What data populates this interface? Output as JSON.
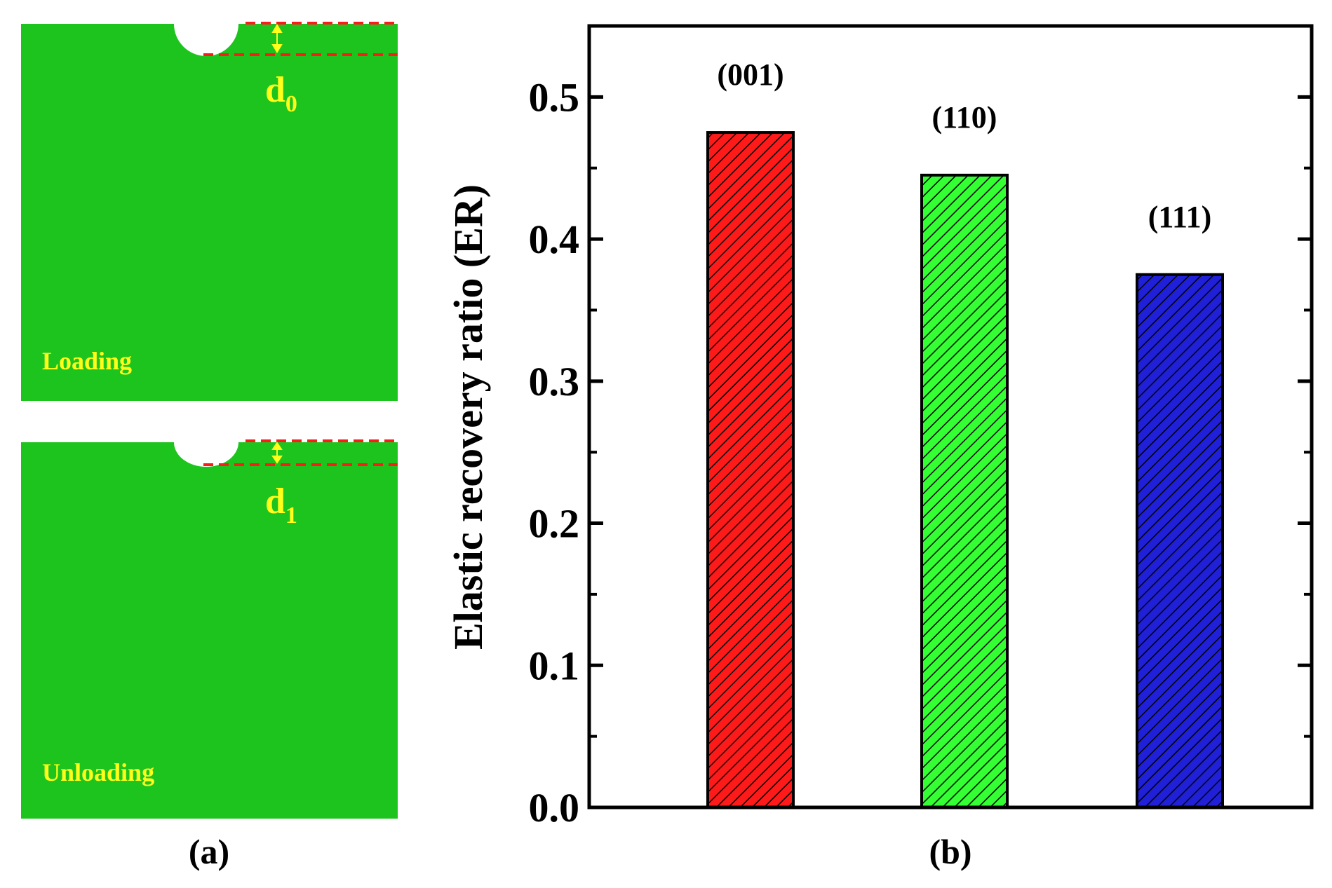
{
  "panel_a": {
    "label": "(a)",
    "top": {
      "caption": "Loading",
      "depth_label": "d",
      "depth_sub": "0"
    },
    "bottom": {
      "caption": "Unloading",
      "depth_label": "d",
      "depth_sub": "1"
    }
  },
  "panel_b": {
    "label": "(b)"
  },
  "colors": {
    "substrate": "#1ec41e",
    "dashed_line": "#ff1a1a",
    "annotation": "#ffff1a",
    "bar_001": "#ff1a1a",
    "bar_110": "#33ff33",
    "bar_111": "#2020d8"
  },
  "chart_data": {
    "type": "bar",
    "categories": [
      "(001)",
      "(110)",
      "(111)"
    ],
    "values": [
      0.475,
      0.445,
      0.375
    ],
    "title": "",
    "xlabel": "",
    "ylabel": "Elastic recovery ratio (ER)",
    "ylim": [
      0.0,
      0.55
    ],
    "yticks": [
      "0.0",
      "0.1",
      "0.2",
      "0.3",
      "0.4",
      "0.5"
    ],
    "grid": false,
    "legend": "none",
    "bar_pattern": "diagonal-hatch"
  }
}
